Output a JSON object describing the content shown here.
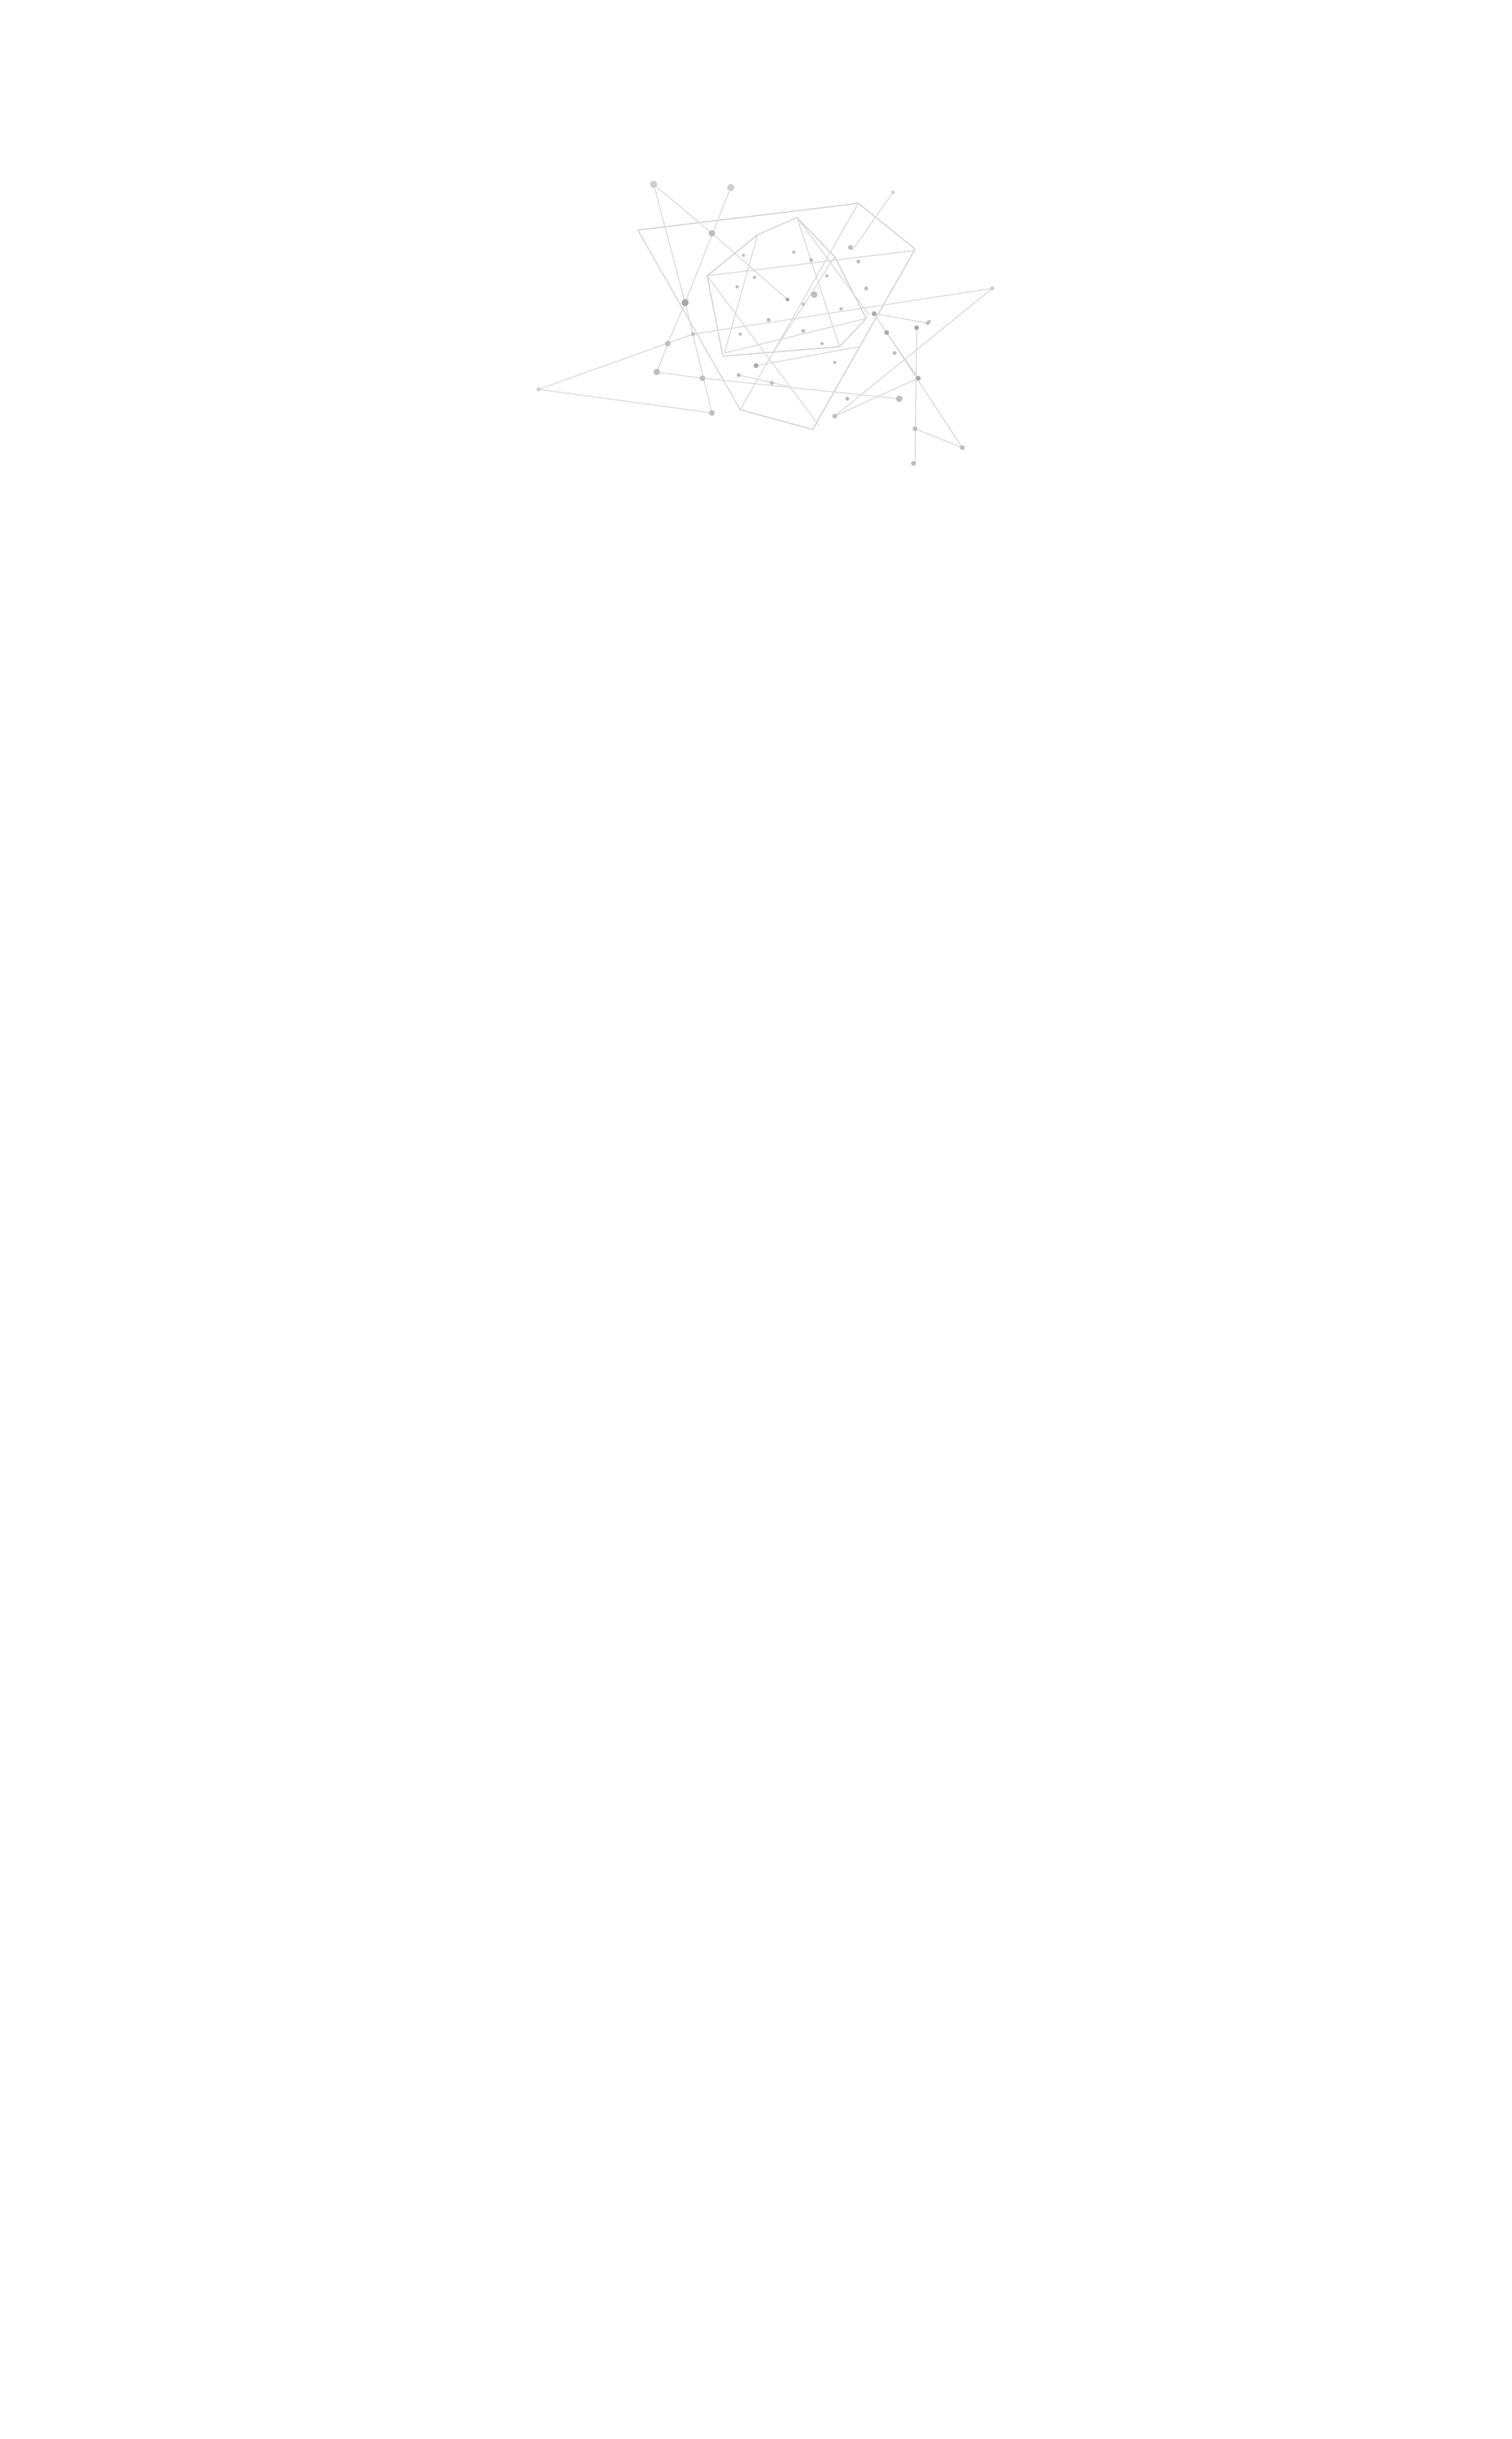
{
  "page": {
    "background_color": "#ffffff"
  },
  "illustration": {
    "icon": "network-graph-illustration",
    "line_color": "#d9d9d9",
    "node_color": "#bdbdbd"
  }
}
